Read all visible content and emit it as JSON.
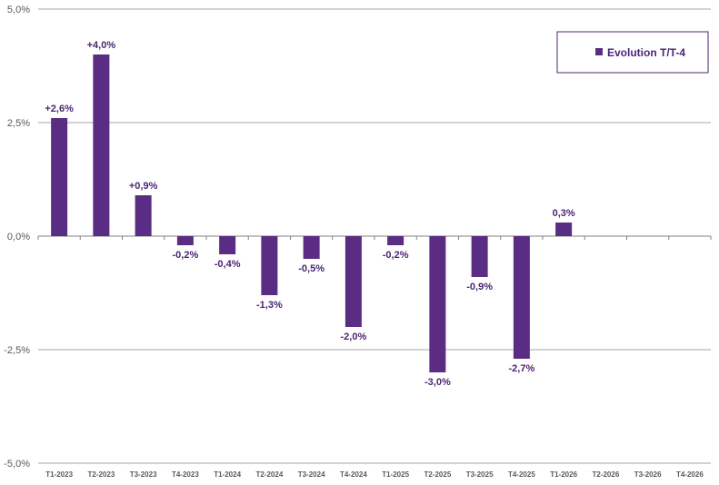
{
  "chart_data": {
    "type": "bar",
    "categories": [
      "T1-2023",
      "T2-2023",
      "T3-2023",
      "T4-2023",
      "T1-2024",
      "T2-2024",
      "T3-2024",
      "T4-2024",
      "T1-2025",
      "T2-2025",
      "T3-2025",
      "T4-2025",
      "T1-2026",
      "T2-2026",
      "T3-2026",
      "T4-2026"
    ],
    "series": [
      {
        "name": "Evolution T/T-4",
        "values": [
          2.6,
          4.0,
          0.9,
          -0.2,
          -0.4,
          -1.3,
          -0.5,
          -2.0,
          -0.2,
          -3.0,
          -0.9,
          -2.7,
          0.3,
          null,
          null,
          null
        ],
        "data_labels": [
          "+2,6%",
          "+4,0%",
          "+0,9%",
          "-0,2%",
          "-0,4%",
          "-1,3%",
          "-0,5%",
          "-2,0%",
          "-0,2%",
          "-3,0%",
          "-0,9%",
          "-2,7%",
          "0,3%",
          "",
          "",
          ""
        ]
      }
    ],
    "y_ticks": [
      {
        "value": 5.0,
        "label": "5,0%"
      },
      {
        "value": 2.5,
        "label": "2,5%"
      },
      {
        "value": 0.0,
        "label": "0,0%"
      },
      {
        "value": -2.5,
        "label": "-2,5%"
      },
      {
        "value": -5.0,
        "label": "-5,0%"
      }
    ],
    "ylim": [
      -5.0,
      5.0
    ],
    "grid": true,
    "legend_position": "top-right",
    "colors": {
      "bar": "#5b2c83",
      "label": "#4b2574",
      "grid": "#a6a6a6",
      "axis_text": "#595959"
    }
  }
}
